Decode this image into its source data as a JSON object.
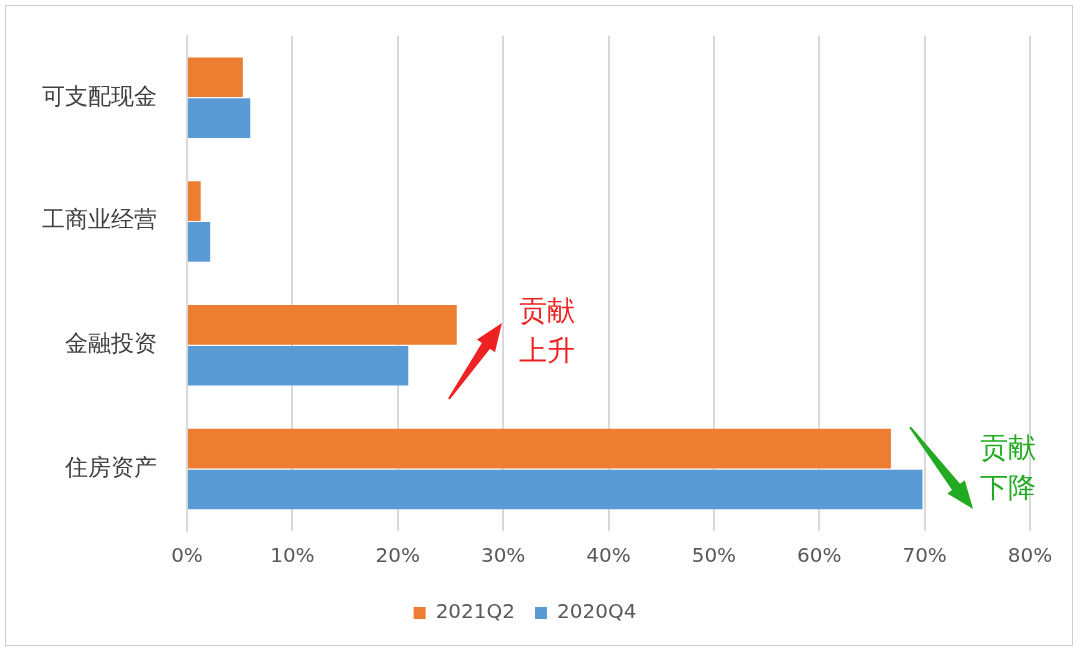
{
  "chart_data": {
    "type": "bar",
    "orientation": "horizontal",
    "categories": [
      "可支配现金",
      "工商业经营",
      "金融投资",
      "住房资产"
    ],
    "series": [
      {
        "name": "2021Q2",
        "color": "#ed7d31",
        "values": [
          5.3,
          1.3,
          25.6,
          66.8
        ]
      },
      {
        "name": "2020Q4",
        "color": "#5b9bd5",
        "values": [
          6.0,
          2.2,
          21.0,
          69.8
        ]
      }
    ],
    "xlim": [
      0,
      80
    ],
    "xticks": [
      {
        "value": 0,
        "label": "0%"
      },
      {
        "value": 10,
        "label": "10%"
      },
      {
        "value": 20,
        "label": "20%"
      },
      {
        "value": 30,
        "label": "30%"
      },
      {
        "value": 40,
        "label": "40%"
      },
      {
        "value": 50,
        "label": "50%"
      },
      {
        "value": 60,
        "label": "60%"
      },
      {
        "value": 70,
        "label": "70%"
      },
      {
        "value": 80,
        "label": "80%"
      }
    ],
    "grid": "x",
    "legend": "bottom",
    "annotations": [
      "贡献上升",
      "贡献下降"
    ]
  }
}
